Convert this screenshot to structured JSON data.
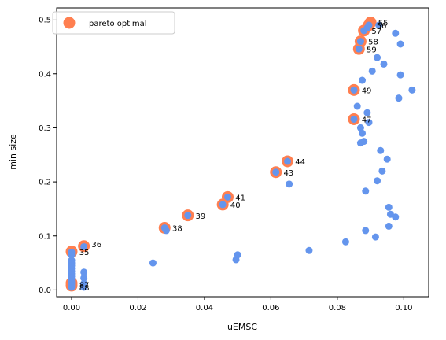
{
  "chart_data": {
    "type": "scatter",
    "xlabel": "uEMSC",
    "ylabel": "min size",
    "xlim": [
      -0.0045,
      0.1075
    ],
    "ylim": [
      -0.0125,
      0.522
    ],
    "xticks": [
      0.0,
      0.02,
      0.04,
      0.06,
      0.08,
      0.1
    ],
    "xtick_labels": [
      "0.00",
      "0.02",
      "0.04",
      "0.06",
      "0.08",
      "0.10"
    ],
    "yticks": [
      0.0,
      0.1,
      0.2,
      0.3,
      0.4,
      0.5
    ],
    "ytick_labels": [
      "0.0",
      "0.1",
      "0.2",
      "0.3",
      "0.4",
      "0.5"
    ],
    "legend": {
      "location": "upper-left",
      "entries": [
        "pareto optimal"
      ]
    },
    "colors": {
      "points": "#6495ed",
      "pareto": "#ff7f50"
    },
    "series": [
      {
        "points": [
          [
            0.0,
            0.005
          ],
          [
            0.0,
            0.01
          ],
          [
            0.0,
            0.015
          ],
          [
            0.0,
            0.02
          ],
          [
            0.0,
            0.025
          ],
          [
            0.0,
            0.03
          ],
          [
            0.0,
            0.035
          ],
          [
            0.0,
            0.04
          ],
          [
            0.0,
            0.045
          ],
          [
            0.0,
            0.05
          ],
          [
            0.0,
            0.055
          ],
          [
            0.0,
            0.065
          ],
          [
            0.0,
            0.07
          ],
          [
            0.0037,
            0.005
          ],
          [
            0.0037,
            0.012
          ],
          [
            0.0037,
            0.022
          ],
          [
            0.0037,
            0.033
          ],
          [
            0.0037,
            0.08
          ],
          [
            0.0245,
            0.05
          ],
          [
            0.028,
            0.115
          ],
          [
            0.0285,
            0.11
          ],
          [
            0.035,
            0.138
          ],
          [
            0.0455,
            0.158
          ],
          [
            0.047,
            0.172
          ],
          [
            0.0495,
            0.056
          ],
          [
            0.05,
            0.065
          ],
          [
            0.0615,
            0.218
          ],
          [
            0.065,
            0.238
          ],
          [
            0.0655,
            0.196
          ],
          [
            0.0715,
            0.073
          ],
          [
            0.0825,
            0.089
          ],
          [
            0.085,
            0.316
          ],
          [
            0.085,
            0.37
          ],
          [
            0.086,
            0.34
          ],
          [
            0.0865,
            0.446
          ],
          [
            0.087,
            0.3
          ],
          [
            0.087,
            0.272
          ],
          [
            0.087,
            0.46
          ],
          [
            0.0875,
            0.29
          ],
          [
            0.0875,
            0.388
          ],
          [
            0.088,
            0.275
          ],
          [
            0.088,
            0.48
          ],
          [
            0.0885,
            0.183
          ],
          [
            0.0885,
            0.11
          ],
          [
            0.089,
            0.328
          ],
          [
            0.089,
            0.485
          ],
          [
            0.0895,
            0.31
          ],
          [
            0.0895,
            0.49
          ],
          [
            0.0905,
            0.405
          ],
          [
            0.0915,
            0.098
          ],
          [
            0.092,
            0.202
          ],
          [
            0.092,
            0.43
          ],
          [
            0.0925,
            0.49
          ],
          [
            0.093,
            0.258
          ],
          [
            0.0935,
            0.22
          ],
          [
            0.094,
            0.418
          ],
          [
            0.095,
            0.242
          ],
          [
            0.0955,
            0.153
          ],
          [
            0.0955,
            0.118
          ],
          [
            0.096,
            0.14
          ],
          [
            0.0975,
            0.475
          ],
          [
            0.0975,
            0.135
          ],
          [
            0.0985,
            0.355
          ],
          [
            0.099,
            0.455
          ],
          [
            0.099,
            0.398
          ],
          [
            0.1025,
            0.37
          ]
        ]
      },
      {
        "name": "pareto optimal",
        "points": [
          [
            0.0,
            0.071
          ],
          [
            0.0,
            0.013
          ],
          [
            0.0,
            0.008
          ],
          [
            0.0037,
            0.081
          ],
          [
            0.028,
            0.115
          ],
          [
            0.035,
            0.138
          ],
          [
            0.0455,
            0.158
          ],
          [
            0.047,
            0.172
          ],
          [
            0.0615,
            0.218
          ],
          [
            0.065,
            0.238
          ],
          [
            0.085,
            0.316
          ],
          [
            0.085,
            0.37
          ],
          [
            0.0865,
            0.446
          ],
          [
            0.087,
            0.46
          ],
          [
            0.088,
            0.48
          ],
          [
            0.0895,
            0.49
          ],
          [
            0.09,
            0.495
          ]
        ]
      }
    ],
    "annotations": [
      {
        "text": "35",
        "x": 0.0,
        "y": 0.071,
        "dx": 0.0023,
        "dy": -0.006
      },
      {
        "text": "36",
        "x": 0.0037,
        "y": 0.081,
        "dx": 0.0023,
        "dy": -0.002
      },
      {
        "text": "87",
        "x": 0.0,
        "y": 0.013,
        "dx": 0.0023,
        "dy": -0.009
      },
      {
        "text": "88",
        "x": 0.0,
        "y": 0.008,
        "dx": 0.0023,
        "dy": -0.009
      },
      {
        "text": "38",
        "x": 0.028,
        "y": 0.115,
        "dx": 0.0023,
        "dy": -0.006
      },
      {
        "text": "39",
        "x": 0.035,
        "y": 0.138,
        "dx": 0.0023,
        "dy": -0.006
      },
      {
        "text": "40",
        "x": 0.0455,
        "y": 0.158,
        "dx": 0.0023,
        "dy": -0.006
      },
      {
        "text": "41",
        "x": 0.047,
        "y": 0.172,
        "dx": 0.0023,
        "dy": -0.006
      },
      {
        "text": "43",
        "x": 0.0615,
        "y": 0.218,
        "dx": 0.0023,
        "dy": -0.006
      },
      {
        "text": "44",
        "x": 0.065,
        "y": 0.238,
        "dx": 0.0023,
        "dy": -0.006
      },
      {
        "text": "47",
        "x": 0.085,
        "y": 0.316,
        "dx": 0.0023,
        "dy": -0.006
      },
      {
        "text": "49",
        "x": 0.085,
        "y": 0.37,
        "dx": 0.0023,
        "dy": -0.006
      },
      {
        "text": "59",
        "x": 0.0865,
        "y": 0.446,
        "dx": 0.0023,
        "dy": -0.006
      },
      {
        "text": "58",
        "x": 0.087,
        "y": 0.46,
        "dx": 0.0023,
        "dy": -0.006
      },
      {
        "text": "57",
        "x": 0.088,
        "y": 0.48,
        "dx": 0.0023,
        "dy": -0.006
      },
      {
        "text": "56",
        "x": 0.0895,
        "y": 0.49,
        "dx": 0.0023,
        "dy": -0.006
      },
      {
        "text": "55",
        "x": 0.09,
        "y": 0.495,
        "dx": 0.0023,
        "dy": -0.006
      }
    ]
  }
}
